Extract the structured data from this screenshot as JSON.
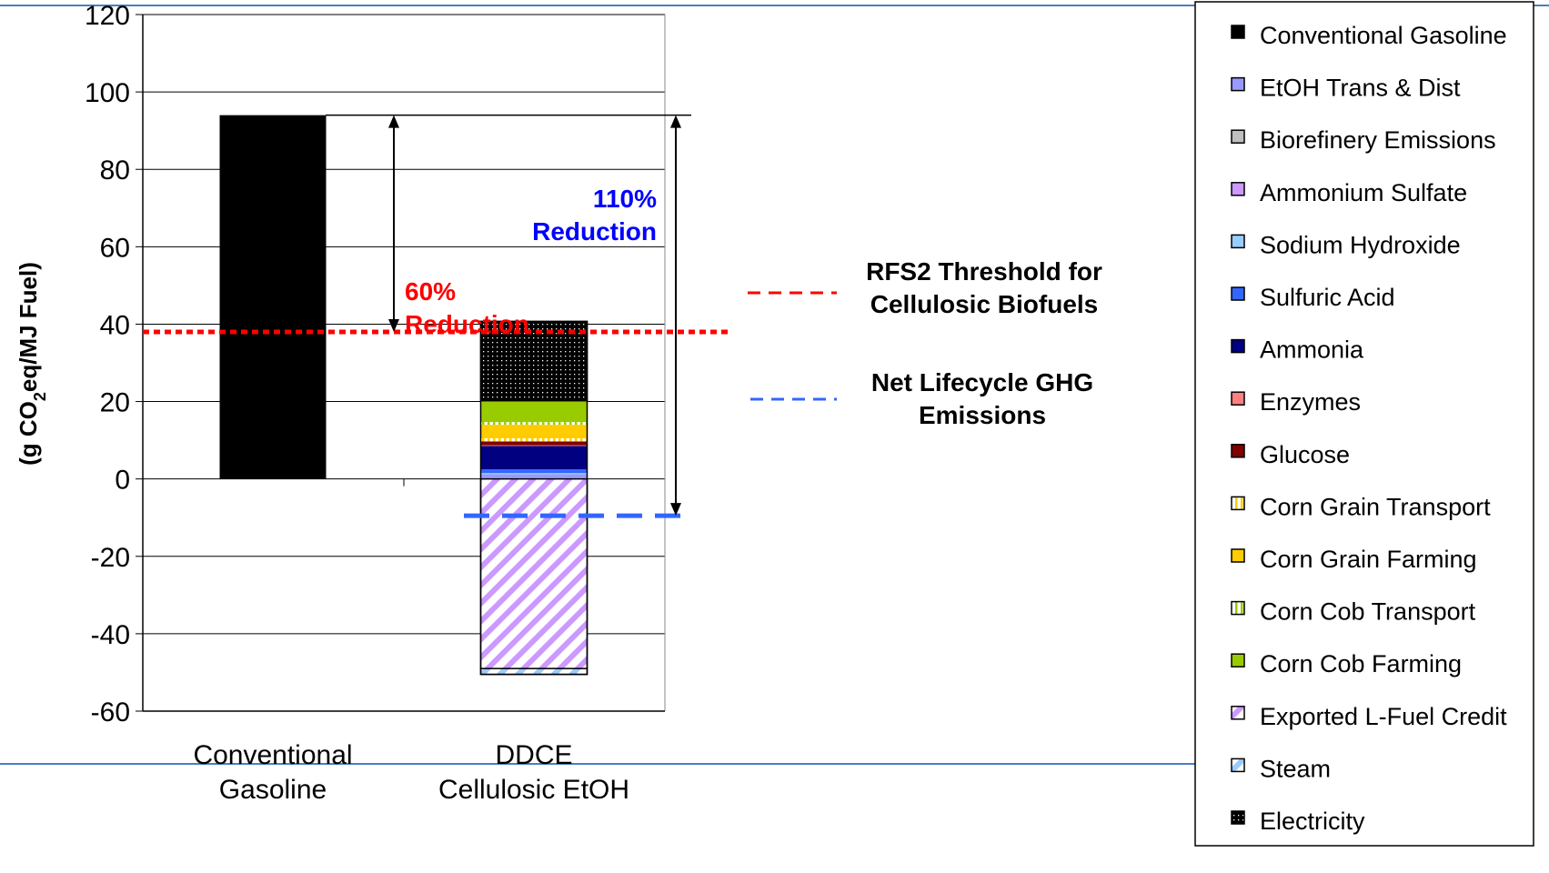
{
  "chart_data": {
    "type": "bar",
    "stacked": true,
    "ylabel_parts": [
      "(g CO",
      "2",
      "eq/MJ Fuel)"
    ],
    "ylim": [
      -60,
      120
    ],
    "yticks": [
      "120",
      "100",
      "80",
      "60",
      "40",
      "20",
      "0",
      "-20",
      "-40",
      "-60"
    ],
    "grid": "horizontal",
    "categories": [
      [
        "Conventional",
        "Gasoline"
      ],
      [
        "DDCE",
        "Cellulosic EtOH"
      ]
    ],
    "series": [
      {
        "name": "Conventional Gasoline",
        "color": "#000000",
        "pattern": "solid",
        "values": [
          94,
          0
        ]
      },
      {
        "name": "EtOH Trans & Dist",
        "color": "#9999ff",
        "pattern": "solid",
        "values": [
          0,
          1.2
        ]
      },
      {
        "name": "Biorefinery Emissions",
        "color": "#c0c0c0",
        "pattern": "solid",
        "values": [
          0,
          0
        ]
      },
      {
        "name": "Ammonium Sulfate",
        "color": "#cc99ff",
        "pattern": "solid",
        "values": [
          0,
          0
        ]
      },
      {
        "name": "Sodium Hydroxide",
        "color": "#99ccff",
        "pattern": "solid",
        "values": [
          0,
          0.3
        ]
      },
      {
        "name": "Sulfuric Acid",
        "color": "#3366ff",
        "pattern": "solid",
        "values": [
          0,
          1.0
        ]
      },
      {
        "name": "Ammonia",
        "color": "#000080",
        "pattern": "solid",
        "values": [
          0,
          6.0
        ]
      },
      {
        "name": "Enzymes",
        "color": "#ff8080",
        "pattern": "solid",
        "values": [
          0,
          0.2
        ]
      },
      {
        "name": "Glucose",
        "color": "#800000",
        "pattern": "solid",
        "values": [
          0,
          1.0
        ]
      },
      {
        "name": "Corn Grain Transport",
        "color": "#ffcc00",
        "pattern": "vstripe",
        "values": [
          0,
          0.8
        ]
      },
      {
        "name": "Corn Grain Farming",
        "color": "#ffcc00",
        "pattern": "solid",
        "values": [
          0,
          3.5
        ]
      },
      {
        "name": "Corn Cob Transport",
        "color": "#99cc00",
        "pattern": "vstripe",
        "values": [
          0,
          0.7
        ]
      },
      {
        "name": "Corn Cob Farming",
        "color": "#99cc00",
        "pattern": "solid",
        "values": [
          0,
          5.5
        ]
      },
      {
        "name": "Exported L-Fuel Credit",
        "color": "#cc99ff",
        "pattern": "diag",
        "values": [
          0,
          -49
        ]
      },
      {
        "name": "Steam",
        "color": "#99ccff",
        "pattern": "diag",
        "values": [
          0,
          -1.5
        ]
      },
      {
        "name": "Electricity",
        "color": "#000000",
        "pattern": "dots",
        "values": [
          0,
          20.5
        ]
      }
    ],
    "reference_lines": [
      {
        "name": "RFS2 Threshold for Cellulosic Biofuels",
        "label_lines": [
          "RFS2 Threshold for",
          "Cellulosic Biofuels"
        ],
        "value": 38,
        "color": "#ff0000",
        "style": "dotted"
      },
      {
        "name": "Net Lifecycle GHG Emissions",
        "label_lines": [
          "Net Lifecycle GHG",
          "Emissions"
        ],
        "value": -9.5,
        "color": "#3366ff",
        "style": "dashed"
      }
    ],
    "annotations": [
      {
        "lines": [
          "60%",
          "Reduction"
        ],
        "color": "#ff0000",
        "from": 94,
        "to": 38
      },
      {
        "lines": [
          "110%",
          "Reduction"
        ],
        "color": "#0000ff",
        "from": 94,
        "to": -9.5
      }
    ],
    "legend_position": "right"
  }
}
